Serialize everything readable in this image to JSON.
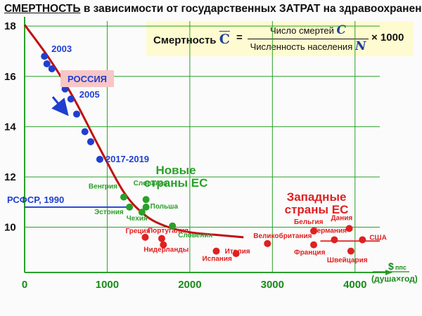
{
  "title": {
    "underlined": "СМЕРТНОСТЬ",
    "rest": " в зависимости от государственных ЗАТРАТ на здравоохранение"
  },
  "formula": {
    "label": "Смертность",
    "symbol": "C",
    "equals": "=",
    "numerator": "Число смертей",
    "numerator_var": "C",
    "denominator": "Численность населения",
    "denominator_var": "N",
    "multiplier": "× 1000"
  },
  "chart_data": {
    "type": "scatter",
    "title": "СМЕРТНОСТЬ в зависимости от государственных ЗАТРАТ на здравоохранение",
    "xlabel": "$ппс (душа×год)",
    "x_unit_symbol": "$",
    "x_unit_sub": "ппс",
    "x_unit_paren": "(душа×год)",
    "ylabel": "",
    "xlim": [
      0,
      4300
    ],
    "ylim": [
      8.2,
      18.2
    ],
    "x_ticks": [
      "0",
      "1000",
      "2000",
      "3000",
      "4000"
    ],
    "x_tick_values": [
      0,
      1000,
      2000,
      3000,
      4000
    ],
    "y_ticks": [
      "10",
      "12",
      "14",
      "16",
      "18"
    ],
    "y_tick_values": [
      10,
      12,
      14,
      16,
      18
    ],
    "grid": true,
    "colors": {
      "russia": "#1f3fd0",
      "new_eu": "#2aa02a",
      "western": "#e02020",
      "trend": "#c01010",
      "grid": "#2aa02a",
      "axis_text": "#1a8a1a"
    },
    "series": [
      {
        "name": "РОССИЯ",
        "color": "#1f3fd0",
        "points": [
          {
            "x": 240,
            "y": 16.8,
            "label": "2003"
          },
          {
            "x": 270,
            "y": 16.5
          },
          {
            "x": 330,
            "y": 16.3
          },
          {
            "x": 490,
            "y": 15.5
          },
          {
            "x": 560,
            "y": 15.1,
            "label": "2005"
          },
          {
            "x": 630,
            "y": 14.5
          },
          {
            "x": 730,
            "y": 13.8
          },
          {
            "x": 800,
            "y": 13.4
          },
          {
            "x": 910,
            "y": 12.7,
            "label": "2017-2019"
          }
        ]
      },
      {
        "name": "Новые страны ЕС",
        "color": "#2aa02a",
        "points": [
          {
            "x": 1200,
            "y": 11.2,
            "label": "Венгрия"
          },
          {
            "x": 1470,
            "y": 11.1,
            "label": "Словакия"
          },
          {
            "x": 1270,
            "y": 10.8,
            "label": "Эстония"
          },
          {
            "x": 1470,
            "y": 10.8,
            "label": "Польша"
          },
          {
            "x": 1420,
            "y": 10.6,
            "label": "Чехия"
          },
          {
            "x": 1790,
            "y": 10.05,
            "label": "Словения"
          }
        ]
      },
      {
        "name": "Западные страны ЕС",
        "color": "#e02020",
        "points": [
          {
            "x": 1460,
            "y": 9.6,
            "label": "Греция"
          },
          {
            "x": 1660,
            "y": 9.55,
            "label": "Португалия"
          },
          {
            "x": 1680,
            "y": 9.3,
            "label": "Нидерланды"
          },
          {
            "x": 2320,
            "y": 9.05,
            "label": "Испания"
          },
          {
            "x": 2560,
            "y": 8.95,
            "label": "Италия"
          },
          {
            "x": 2940,
            "y": 9.35,
            "label": "Великобритания"
          },
          {
            "x": 3500,
            "y": 9.85,
            "label": "Бельгия"
          },
          {
            "x": 3500,
            "y": 9.3,
            "label": "Франция"
          },
          {
            "x": 3750,
            "y": 9.5,
            "label": "Германия"
          },
          {
            "x": 3930,
            "y": 9.95,
            "label": "Дания"
          },
          {
            "x": 3950,
            "y": 9.05,
            "label": "Швейцария"
          },
          {
            "x": 4090,
            "y": 9.5,
            "label": "США"
          }
        ]
      }
    ],
    "trend_line": {
      "color": "#c01010",
      "points": [
        [
          0,
          18.05
        ],
        [
          300,
          16.7
        ],
        [
          600,
          15.1
        ],
        [
          900,
          13.2
        ],
        [
          1200,
          11.4
        ],
        [
          1450,
          10.5
        ],
        [
          1700,
          10.05
        ],
        [
          2000,
          9.8
        ],
        [
          2300,
          9.7
        ],
        [
          2650,
          9.6
        ]
      ]
    },
    "reference_lines": [
      {
        "label": "РСФСР, 1990",
        "y": 10.8,
        "x_from": 0,
        "x_to": 1250,
        "color": "#1f3fd0"
      },
      {
        "label": "",
        "y": 9.45,
        "x_from": 3580,
        "x_to": 4300,
        "color": "#e02020"
      }
    ],
    "annotations": {
      "russia_label": "РОССИЯ",
      "new_eu_label": [
        "Новые",
        "страны ЕС"
      ],
      "western_label": [
        "Западные",
        "страны ЕС"
      ]
    }
  }
}
